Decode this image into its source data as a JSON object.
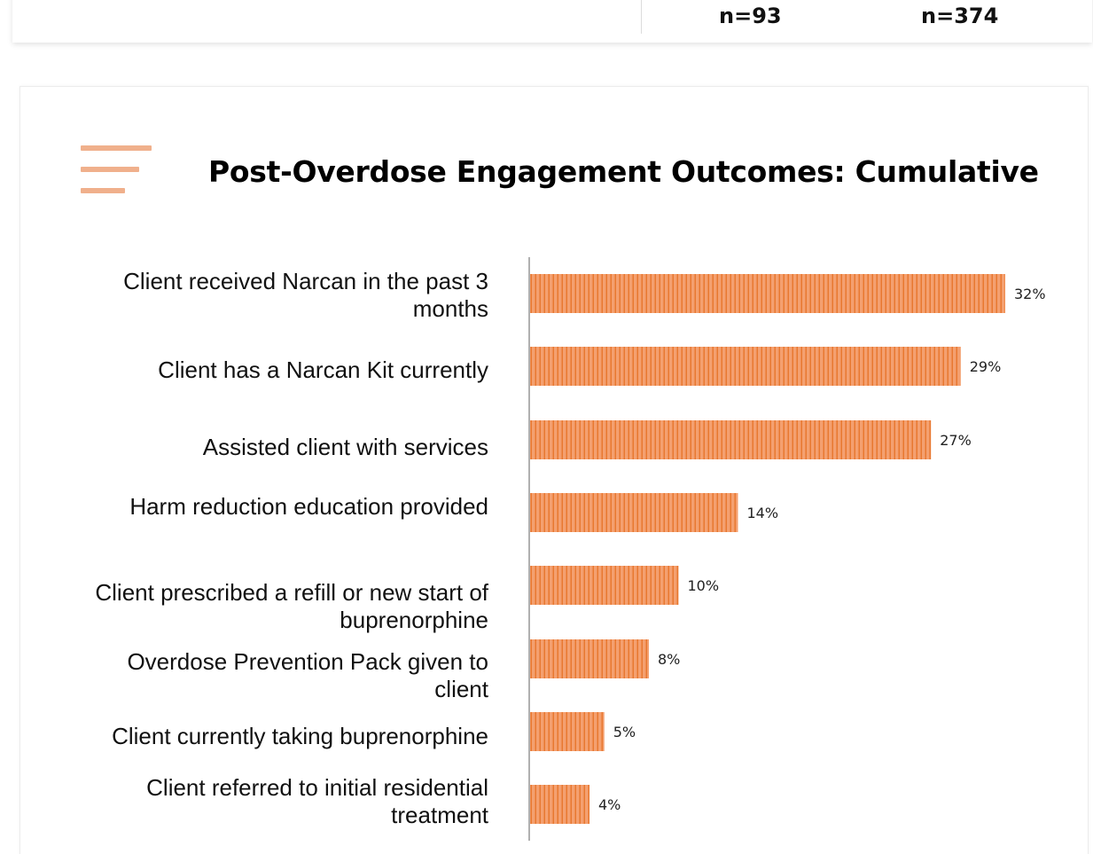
{
  "header": {
    "n_left": "n=93",
    "n_right": "n=374"
  },
  "colors": {
    "bar": "#f4a070",
    "bar_stripe": "#e87830",
    "icon": "#f0b08c",
    "axis": "#b0b0b0"
  },
  "icon": "menu-lines-icon",
  "chart_data": {
    "type": "bar",
    "orientation": "horizontal",
    "title": "Post-Overdose Engagement Outcomes: Cumulative",
    "categories": [
      [
        "Client received Narcan in the past 3",
        "months"
      ],
      [
        "Client has a Narcan Kit currently"
      ],
      [
        "Assisted client with services"
      ],
      [
        "Harm reduction education provided"
      ],
      [
        "Client prescribed a refill or new start of",
        "buprenorphine"
      ],
      [
        "Overdose Prevention Pack given to",
        "client"
      ],
      [
        "Client currently taking buprenorphine"
      ],
      [
        "Client referred to initial residential",
        "treatment"
      ]
    ],
    "values": [
      32,
      29,
      27,
      14,
      10,
      8,
      5,
      4
    ],
    "value_labels": [
      "32%",
      "29%",
      "27%",
      "14%",
      "10%",
      "8%",
      "5%",
      "4%"
    ],
    "unit": "%",
    "xlim": [
      0,
      32
    ],
    "grid": false,
    "legend": "none"
  }
}
